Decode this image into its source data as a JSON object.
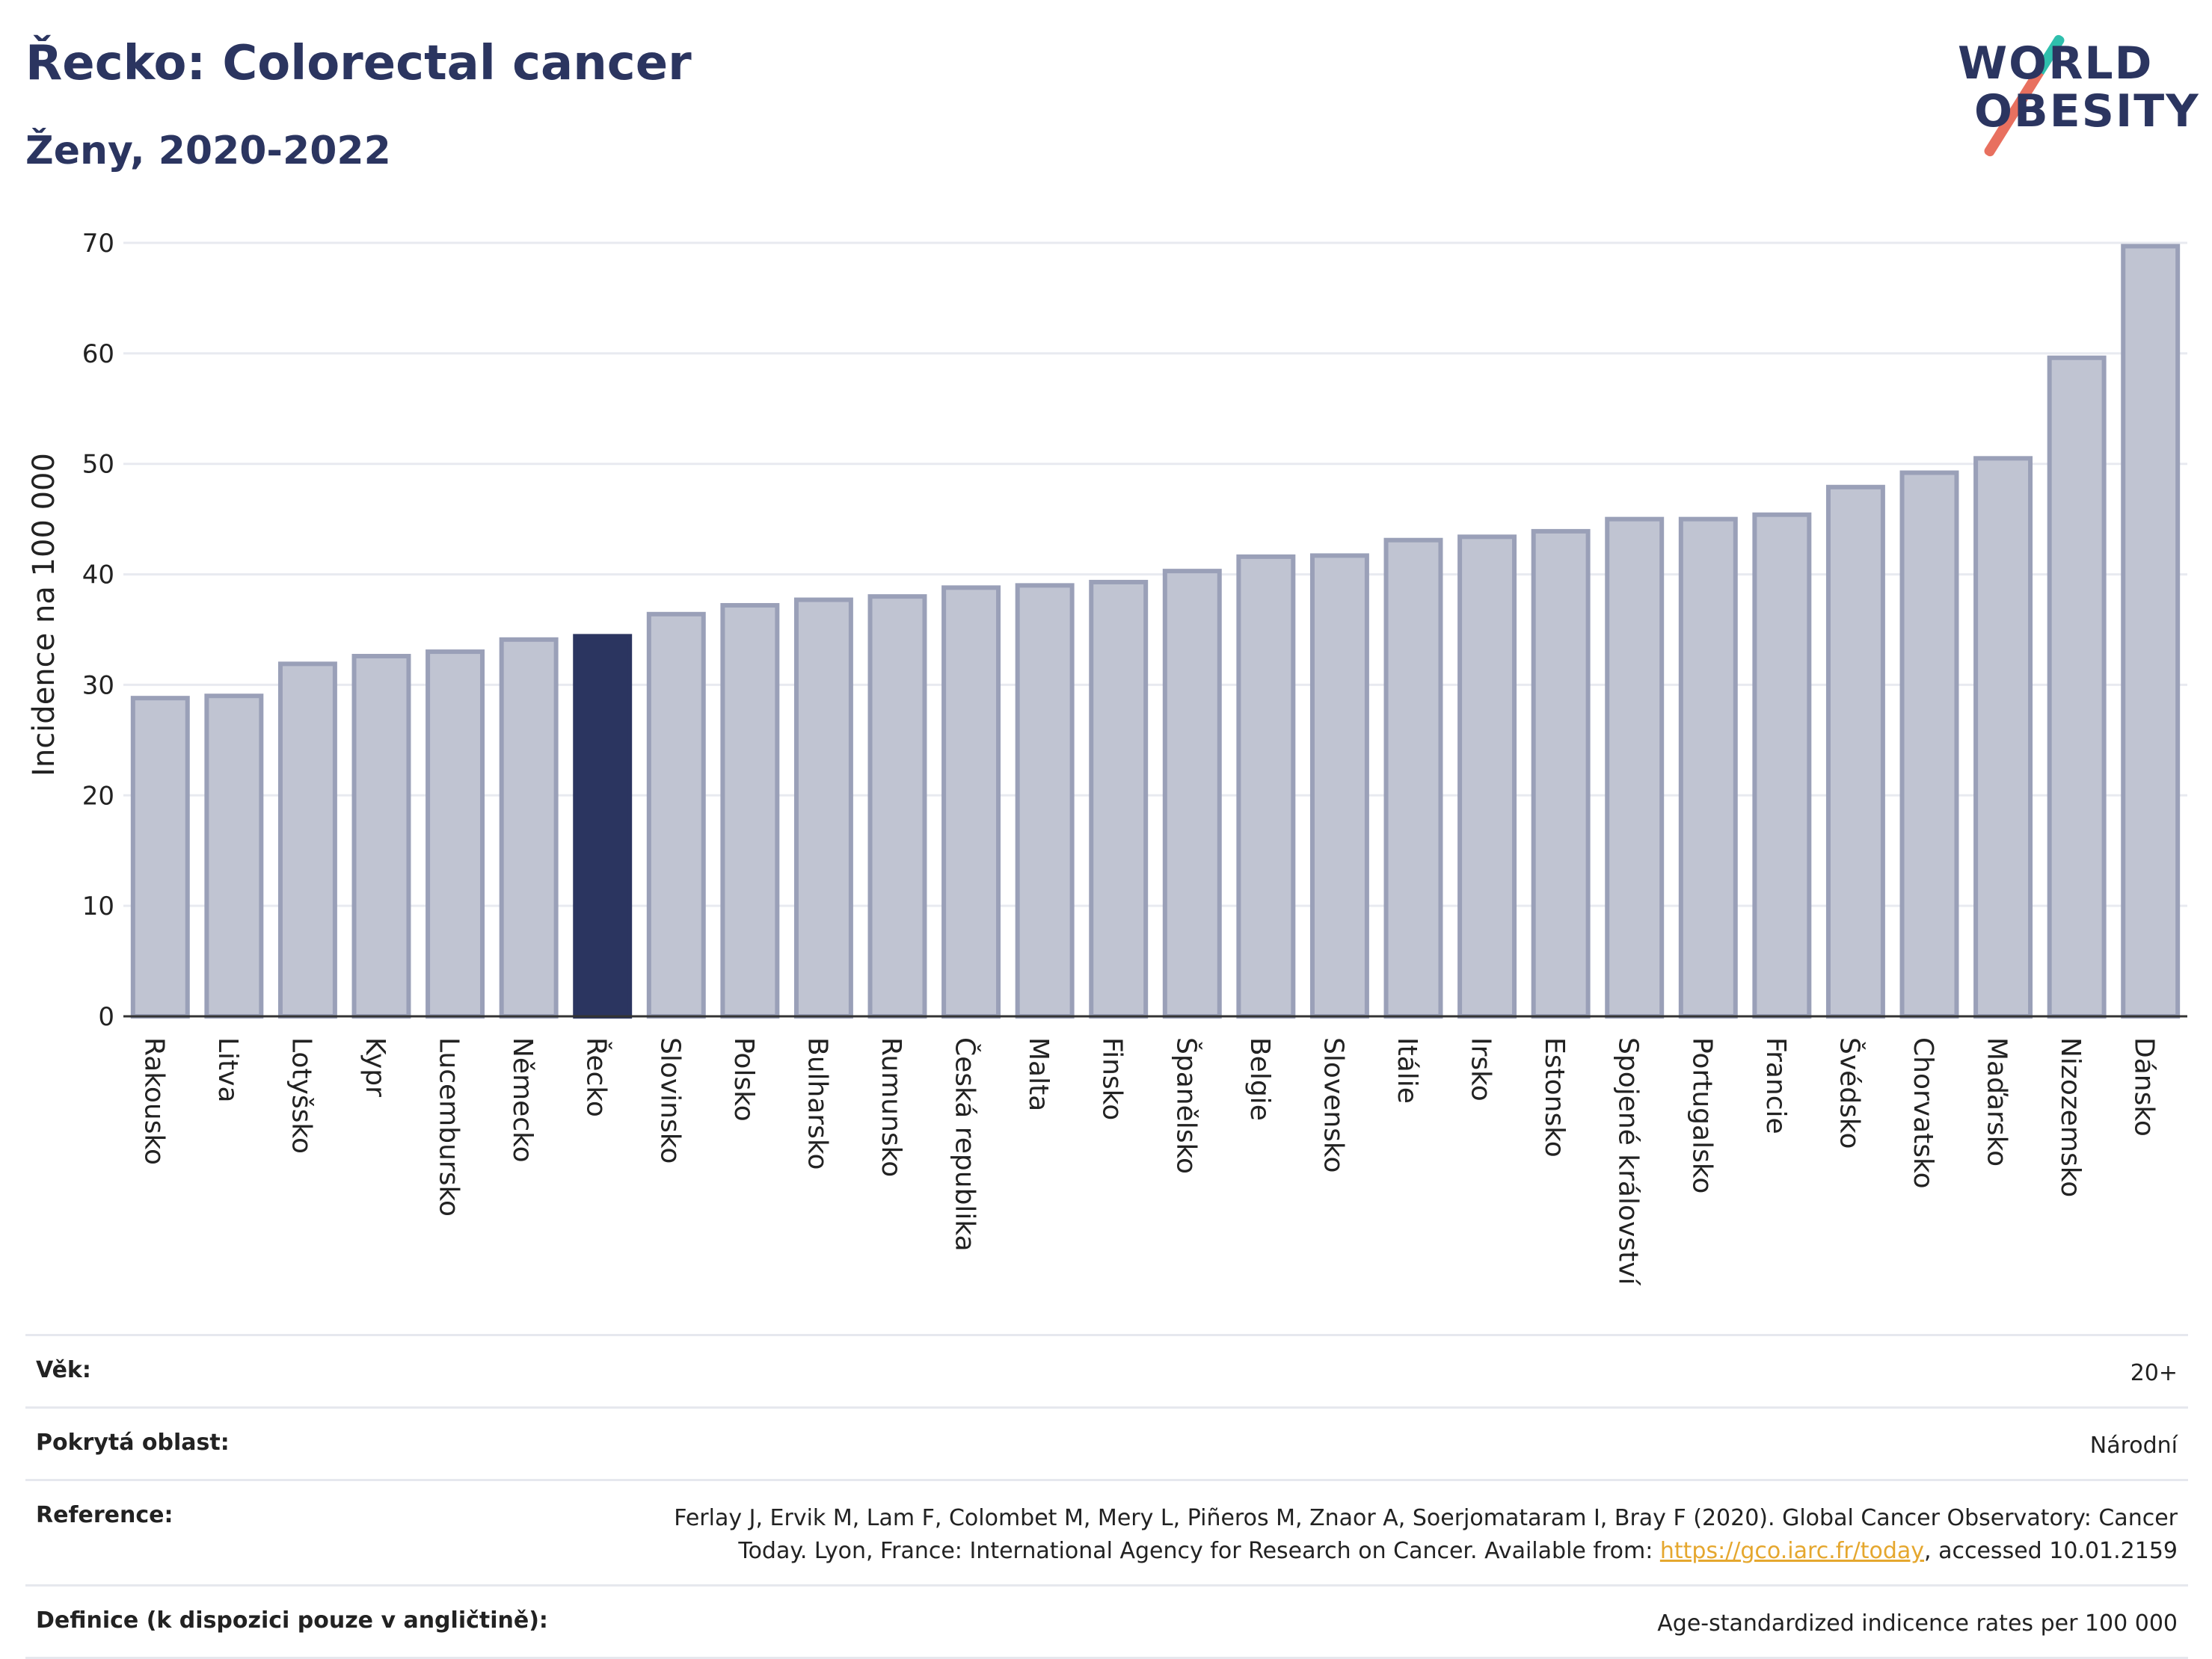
{
  "header": {
    "title": "Řecko: Colorectal cancer",
    "subtitle": "Ženy, 2020-2022"
  },
  "logo": {
    "line1": "WORLD",
    "line2": "OBESITY",
    "colors": {
      "text": "#2b3560",
      "slash_top": "#2fbfad",
      "slash_bottom": "#e8705f"
    }
  },
  "chart_data": {
    "type": "bar",
    "ylabel": "Incidence na 100 000",
    "ylim": [
      0,
      70
    ],
    "yticks": [
      0,
      10,
      20,
      30,
      40,
      50,
      60,
      70
    ],
    "grid": true,
    "highlight": "Řecko",
    "colors": {
      "bar": "#c0c4d2",
      "bar_border": "#9aa0b8",
      "highlight": "#2b3560"
    },
    "categories": [
      "Rakousko",
      "Litva",
      "Lotyšsko",
      "Kypr",
      "Lucembursko",
      "Německo",
      "Řecko",
      "Slovinsko",
      "Polsko",
      "Bulharsko",
      "Rumunsko",
      "Česká republika",
      "Malta",
      "Finsko",
      "Španělsko",
      "Belgie",
      "Slovensko",
      "Itálie",
      "Irsko",
      "Estonsko",
      "Spojené království",
      "Portugalsko",
      "Francie",
      "Švédsko",
      "Chorvatsko",
      "Maďarsko",
      "Nizozemsko",
      "Dánsko"
    ],
    "values": [
      28.8,
      29.0,
      31.9,
      32.6,
      33.0,
      34.1,
      34.4,
      36.4,
      37.2,
      37.7,
      38.0,
      38.8,
      39.0,
      39.3,
      40.3,
      41.6,
      41.7,
      43.1,
      43.4,
      43.9,
      45.0,
      45.0,
      45.4,
      47.9,
      49.2,
      50.5,
      59.6,
      69.7
    ]
  },
  "meta": [
    {
      "label": "Věk:",
      "value": "20+"
    },
    {
      "label": "Pokrytá oblast:",
      "value": "Národní"
    },
    {
      "label": "Reference:",
      "value_line1": "Ferlay J, Ervik M, Lam F, Colombet M, Mery L, Piñeros M, Znaor A, Soerjomataram I, Bray F (2020). Global Cancer Observatory: Cancer",
      "value_line2_pre": "Today. Lyon, France: International Agency for Research on Cancer. Available from: ",
      "link": "https://gco.iarc.fr/today",
      "value_line2_post": ", accessed 10.01.2159"
    },
    {
      "label": "Definice (k dispozici pouze v angličtině):",
      "value": "Age-standardized indicence rates per 100 000"
    }
  ]
}
